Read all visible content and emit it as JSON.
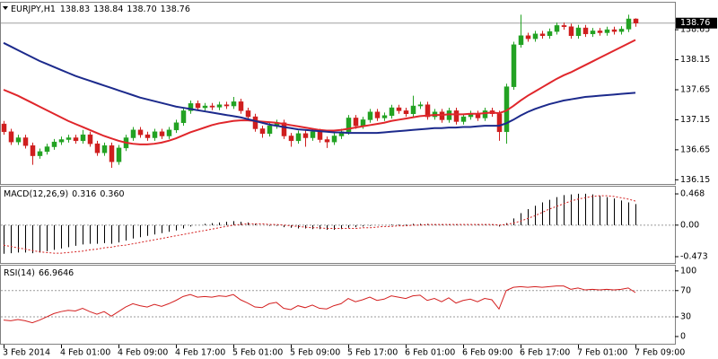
{
  "chart_data": [
    {
      "type": "candlestick",
      "title": "EURJPY,H1",
      "readout_labels": [
        "138.83",
        "138.84",
        "138.70",
        "138.76"
      ],
      "up_color": "#23a223",
      "down_color": "#cf1f1f",
      "ylim": [
        136.08,
        139.1
      ],
      "yticks": [
        138.65,
        138.15,
        137.65,
        137.15,
        136.65,
        136.15
      ],
      "open": [
        137.08,
        136.95,
        136.78,
        136.85,
        136.72,
        136.55,
        136.62,
        136.7,
        136.78,
        136.82,
        136.85,
        136.8,
        136.9,
        136.75,
        136.6,
        136.72,
        136.45,
        136.68,
        136.85,
        136.98,
        136.9,
        136.85,
        136.95,
        136.88,
        136.98,
        137.1,
        137.3,
        137.42,
        137.35,
        137.38,
        137.36,
        137.4,
        137.38,
        137.45,
        137.3,
        137.2,
        137.0,
        136.92,
        137.05,
        137.1,
        136.88,
        136.8,
        136.92,
        136.85,
        136.95,
        136.82,
        136.78,
        136.88,
        136.95,
        137.18,
        137.05,
        137.15,
        137.28,
        137.18,
        137.22,
        137.35,
        137.3,
        137.25,
        137.38,
        137.4,
        137.2,
        137.28,
        137.15,
        137.3,
        137.12,
        137.2,
        137.25,
        137.18,
        137.3,
        137.25,
        136.95,
        137.7,
        138.4,
        138.55,
        138.5,
        138.58,
        138.55,
        138.62,
        138.72,
        138.7,
        138.55,
        138.68,
        138.58,
        138.63,
        138.6,
        138.65,
        138.62,
        138.66,
        138.83
      ],
      "high": [
        137.13,
        137.0,
        136.9,
        136.9,
        136.77,
        136.67,
        136.75,
        136.83,
        136.87,
        136.9,
        136.9,
        136.98,
        136.95,
        136.8,
        136.77,
        136.77,
        136.73,
        136.9,
        137.03,
        137.03,
        136.95,
        137.0,
        137.0,
        137.03,
        137.15,
        137.35,
        137.47,
        137.47,
        137.43,
        137.43,
        137.45,
        137.45,
        137.53,
        137.5,
        137.35,
        137.25,
        137.05,
        137.1,
        137.15,
        137.15,
        136.93,
        136.97,
        136.97,
        137.0,
        137.0,
        136.87,
        136.93,
        137.0,
        137.23,
        137.23,
        137.2,
        137.33,
        137.33,
        137.27,
        137.4,
        137.4,
        137.35,
        137.55,
        137.45,
        137.45,
        137.33,
        137.33,
        137.35,
        137.35,
        137.25,
        137.3,
        137.3,
        137.35,
        137.35,
        137.3,
        137.75,
        138.45,
        138.9,
        138.6,
        138.63,
        138.63,
        138.67,
        138.77,
        138.77,
        138.75,
        138.73,
        138.73,
        138.68,
        138.68,
        138.7,
        138.7,
        138.71,
        138.9,
        138.84
      ],
      "low": [
        136.9,
        136.73,
        136.73,
        136.67,
        136.4,
        136.5,
        136.57,
        136.65,
        136.73,
        136.77,
        136.75,
        136.75,
        136.7,
        136.55,
        136.55,
        136.35,
        136.4,
        136.63,
        136.8,
        136.85,
        136.8,
        136.8,
        136.83,
        136.83,
        136.93,
        137.05,
        137.25,
        137.3,
        137.3,
        137.31,
        137.31,
        137.33,
        137.33,
        137.25,
        137.15,
        136.95,
        136.85,
        136.87,
        137.0,
        136.83,
        136.7,
        136.75,
        136.7,
        136.8,
        136.77,
        136.68,
        136.73,
        136.83,
        136.9,
        137.0,
        137.0,
        137.1,
        137.13,
        137.13,
        137.17,
        137.25,
        137.2,
        137.2,
        137.33,
        137.15,
        137.15,
        137.1,
        137.1,
        137.07,
        137.07,
        137.15,
        137.13,
        137.13,
        137.2,
        136.8,
        136.75,
        137.65,
        138.35,
        138.45,
        138.45,
        138.5,
        138.5,
        138.57,
        138.65,
        138.5,
        138.5,
        138.53,
        138.53,
        138.55,
        138.55,
        138.57,
        138.57,
        138.61,
        138.7
      ],
      "close": [
        136.95,
        136.78,
        136.85,
        136.72,
        136.55,
        136.62,
        136.7,
        136.78,
        136.82,
        136.85,
        136.8,
        136.9,
        136.75,
        136.6,
        136.72,
        136.45,
        136.68,
        136.85,
        136.98,
        136.9,
        136.85,
        136.95,
        136.88,
        136.98,
        137.1,
        137.3,
        137.42,
        137.35,
        137.38,
        137.36,
        137.4,
        137.38,
        137.45,
        137.3,
        137.2,
        137.0,
        136.92,
        137.05,
        137.1,
        136.88,
        136.8,
        136.92,
        136.85,
        136.95,
        136.82,
        136.78,
        136.88,
        136.95,
        137.18,
        137.05,
        137.15,
        137.28,
        137.18,
        137.22,
        137.35,
        137.3,
        137.25,
        137.38,
        137.4,
        137.2,
        137.28,
        137.15,
        137.3,
        137.12,
        137.2,
        137.25,
        137.18,
        137.3,
        137.25,
        136.95,
        137.7,
        138.4,
        138.55,
        138.5,
        138.58,
        138.55,
        138.62,
        138.72,
        138.7,
        138.55,
        138.68,
        138.58,
        138.63,
        138.6,
        138.65,
        138.62,
        138.66,
        138.83,
        138.76
      ],
      "lines": [
        {
          "color": "#e0262b",
          "values": [
            137.65,
            137.6,
            137.55,
            137.49,
            137.43,
            137.37,
            137.31,
            137.25,
            137.19,
            137.13,
            137.08,
            137.03,
            136.98,
            136.93,
            136.88,
            136.84,
            136.8,
            136.77,
            136.75,
            136.74,
            136.74,
            136.75,
            136.77,
            136.8,
            136.84,
            136.89,
            136.94,
            136.98,
            137.02,
            137.06,
            137.09,
            137.11,
            137.13,
            137.14,
            137.14,
            137.13,
            137.12,
            137.11,
            137.1,
            137.08,
            137.06,
            137.04,
            137.02,
            137.0,
            136.98,
            136.97,
            136.97,
            136.98,
            137.0,
            137.02,
            137.04,
            137.06,
            137.08,
            137.1,
            137.13,
            137.15,
            137.17,
            137.19,
            137.21,
            137.22,
            137.23,
            137.23,
            137.24,
            137.24,
            137.24,
            137.25,
            137.25,
            137.26,
            137.27,
            137.26,
            137.3,
            137.38,
            137.47,
            137.55,
            137.62,
            137.69,
            137.76,
            137.83,
            137.89,
            137.94,
            138.0,
            138.06,
            138.12,
            138.18,
            138.24,
            138.3,
            138.36,
            138.42,
            138.48
          ]
        },
        {
          "color": "#1c2a8c",
          "values": [
            138.43,
            138.37,
            138.31,
            138.25,
            138.19,
            138.13,
            138.08,
            138.03,
            137.98,
            137.93,
            137.88,
            137.84,
            137.8,
            137.76,
            137.72,
            137.68,
            137.64,
            137.6,
            137.56,
            137.52,
            137.49,
            137.46,
            137.43,
            137.4,
            137.37,
            137.35,
            137.33,
            137.31,
            137.29,
            137.27,
            137.25,
            137.23,
            137.21,
            137.19,
            137.16,
            137.13,
            137.1,
            137.07,
            137.05,
            137.03,
            137.01,
            136.99,
            136.98,
            136.97,
            136.96,
            136.95,
            136.94,
            136.94,
            136.93,
            136.93,
            136.93,
            136.93,
            136.93,
            136.94,
            136.95,
            136.96,
            136.97,
            136.98,
            136.99,
            137.0,
            137.01,
            137.01,
            137.02,
            137.02,
            137.03,
            137.03,
            137.04,
            137.05,
            137.05,
            137.05,
            137.09,
            137.15,
            137.22,
            137.28,
            137.33,
            137.37,
            137.41,
            137.44,
            137.47,
            137.49,
            137.51,
            137.53,
            137.54,
            137.55,
            137.56,
            137.57,
            137.58,
            137.59,
            137.6
          ]
        }
      ]
    },
    {
      "type": "macd",
      "title": "MACD(12,26,9)",
      "readout_labels": [
        "0.316",
        "0.360"
      ],
      "histogram_color": "#000000",
      "signal_color": "#d42020",
      "ylim": [
        -0.567,
        0.576
      ],
      "yticks": [
        0.468,
        {
          "value": 0,
          "label": "0.00"
        },
        -0.473
      ],
      "levels": [
        0
      ],
      "histogram": [
        -0.43,
        -0.42,
        -0.41,
        -0.41,
        -0.42,
        -0.41,
        -0.39,
        -0.37,
        -0.35,
        -0.33,
        -0.31,
        -0.29,
        -0.28,
        -0.28,
        -0.27,
        -0.28,
        -0.26,
        -0.23,
        -0.2,
        -0.18,
        -0.16,
        -0.14,
        -0.12,
        -0.1,
        -0.08,
        -0.05,
        -0.02,
        0.0,
        0.02,
        0.03,
        0.04,
        0.05,
        0.06,
        0.05,
        0.04,
        0.02,
        0.0,
        -0.01,
        -0.01,
        -0.03,
        -0.04,
        -0.05,
        -0.05,
        -0.06,
        -0.06,
        -0.07,
        -0.07,
        -0.06,
        -0.04,
        -0.03,
        -0.02,
        -0.01,
        0.0,
        0.0,
        0.01,
        0.01,
        0.01,
        0.02,
        0.02,
        0.02,
        0.01,
        0.01,
        0.01,
        0.01,
        0.0,
        0.0,
        0.01,
        0.01,
        0.01,
        -0.02,
        0.03,
        0.1,
        0.18,
        0.24,
        0.29,
        0.34,
        0.38,
        0.42,
        0.45,
        0.46,
        0.47,
        0.47,
        0.46,
        0.44,
        0.42,
        0.4,
        0.37,
        0.34,
        0.316
      ],
      "signal": [
        -0.3,
        -0.32,
        -0.34,
        -0.36,
        -0.38,
        -0.4,
        -0.41,
        -0.42,
        -0.42,
        -0.41,
        -0.4,
        -0.39,
        -0.37,
        -0.36,
        -0.34,
        -0.33,
        -0.31,
        -0.3,
        -0.28,
        -0.26,
        -0.24,
        -0.22,
        -0.2,
        -0.18,
        -0.16,
        -0.14,
        -0.12,
        -0.1,
        -0.08,
        -0.06,
        -0.04,
        -0.02,
        0.0,
        0.01,
        0.02,
        0.02,
        0.02,
        0.01,
        0.01,
        0.0,
        -0.01,
        -0.02,
        -0.03,
        -0.04,
        -0.04,
        -0.05,
        -0.05,
        -0.05,
        -0.05,
        -0.05,
        -0.04,
        -0.04,
        -0.03,
        -0.02,
        -0.02,
        -0.01,
        -0.01,
        0.0,
        0.0,
        0.01,
        0.01,
        0.01,
        0.01,
        0.01,
        0.01,
        0.01,
        0.01,
        0.01,
        0.01,
        0.0,
        0.01,
        0.03,
        0.06,
        0.1,
        0.14,
        0.19,
        0.24,
        0.28,
        0.32,
        0.36,
        0.39,
        0.41,
        0.43,
        0.44,
        0.44,
        0.43,
        0.41,
        0.39,
        0.36
      ]
    },
    {
      "type": "rsi",
      "title": "RSI(14)",
      "readout_labels": [
        "66.9646"
      ],
      "color": "#d42020",
      "ylim": [
        -11,
        108
      ],
      "yticks": [
        100,
        70,
        30,
        0
      ],
      "levels": [
        70,
        30
      ],
      "values": [
        25,
        24,
        26,
        24,
        21,
        25,
        30,
        35,
        38,
        40,
        39,
        43,
        38,
        34,
        38,
        31,
        38,
        45,
        50,
        47,
        45,
        49,
        46,
        50,
        55,
        61,
        64,
        60,
        61,
        60,
        62,
        61,
        64,
        56,
        51,
        45,
        44,
        50,
        52,
        43,
        41,
        47,
        44,
        48,
        43,
        42,
        47,
        50,
        58,
        53,
        56,
        60,
        55,
        57,
        62,
        60,
        58,
        62,
        63,
        55,
        58,
        53,
        59,
        51,
        55,
        57,
        53,
        58,
        56,
        42,
        70,
        75,
        76,
        75,
        76,
        75,
        76,
        77,
        77,
        72,
        74,
        71,
        72,
        71,
        72,
        71,
        72,
        74,
        66.9646
      ],
      "categories": [
        "3 Feb 2014",
        null,
        null,
        null,
        null,
        null,
        null,
        null,
        "4 Feb 01:00",
        null,
        null,
        null,
        null,
        null,
        null,
        null,
        "4 Feb 09:00",
        null,
        null,
        null,
        null,
        null,
        null,
        null,
        "4 Feb 17:00",
        null,
        null,
        null,
        null,
        null,
        null,
        null,
        "5 Feb 01:00",
        null,
        null,
        null,
        null,
        null,
        null,
        null,
        "5 Feb 09:00",
        null,
        null,
        null,
        null,
        null,
        null,
        null,
        "5 Feb 17:00",
        null,
        null,
        null,
        null,
        null,
        null,
        null,
        "6 Feb 01:00",
        null,
        null,
        null,
        null,
        null,
        null,
        null,
        "6 Feb 09:00",
        null,
        null,
        null,
        null,
        null,
        null,
        null,
        "6 Feb 17:00",
        null,
        null,
        null,
        null,
        null,
        null,
        null,
        "7 Feb 01:00",
        null,
        null,
        null,
        null,
        null,
        null,
        null,
        "7 Feb 09:00"
      ]
    }
  ]
}
